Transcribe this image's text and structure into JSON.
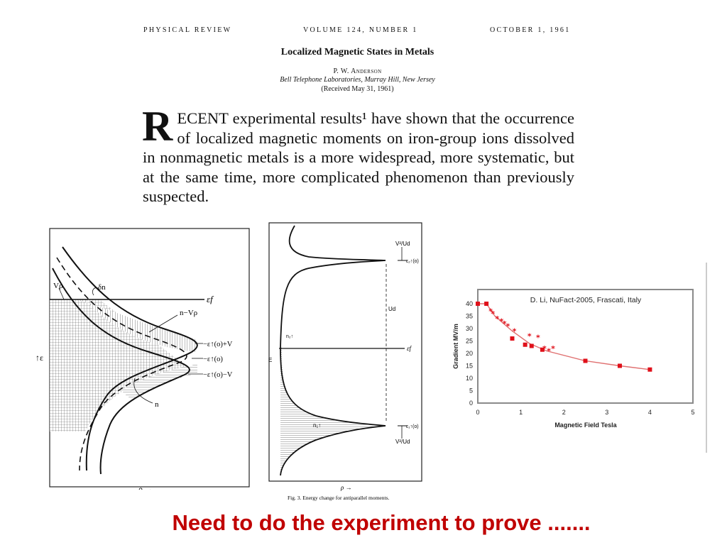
{
  "header": {
    "journal": "PHYSICAL REVIEW",
    "volume": "VOLUME 124, NUMBER 1",
    "date": "OCTOBER 1, 1961"
  },
  "paper": {
    "title": "Localized Magnetic States in Metals",
    "author": "P. W. Anderson",
    "affiliation": "Bell Telephone Laboratories, Murray Hill, New Jersey",
    "received": "(Received May 31, 1961)",
    "dropcap": "R",
    "abstract_rest": "ECENT experimental results¹ have shown that the occurrence of localized magnetic moments on iron-group ions dissolved in nonmagnetic metals is a more widespread, more systematic, but at the same time, more complicated phenomenon than previously suspected."
  },
  "figure_left": {
    "labels": {
      "ef": "εf",
      "vrho": "Vρ",
      "dn": "δn",
      "n_minus_vrho": "n−Vρ",
      "e_plus_v": "−ε↑(o)+V",
      "e0": "−ε↑(o)",
      "e_minus_v": "−ε↑(o)−V",
      "n": "n",
      "e_axis": "↑ε",
      "rho_axis": "ρ →"
    }
  },
  "figure_mid": {
    "labels": {
      "v2ud_top": "V²/Ud",
      "e2": "ε₂↑(o)",
      "ud": "Ud",
      "ef": "εf",
      "n2": "n₂↑",
      "e_axis": "E",
      "n1": "n₁↑",
      "e1": "ε₁↑(o)",
      "v2ud_bottom": "V²/Ud",
      "rho_axis": "ρ →",
      "caption": "Fig. 3. Energy change for antiparallel moments."
    }
  },
  "chart_data": {
    "type": "scatter",
    "title": "D. Li, NuFact-2005, Frascati, Italy",
    "xlabel": "Magnetic Field Tesla",
    "ylabel": "Gradient MV/m",
    "xlim": [
      0,
      5
    ],
    "ylim": [
      0,
      40
    ],
    "x_ticks": [
      "0",
      "1",
      "2",
      "3",
      "4",
      "5"
    ],
    "y_ticks": [
      "0",
      "5",
      "10",
      "15",
      "20",
      "25",
      "30",
      "35",
      "40"
    ],
    "series": [
      {
        "marker": "square",
        "color": "#e0101a",
        "points": [
          [
            0,
            40
          ],
          [
            0.2,
            40
          ],
          [
            0.8,
            26
          ],
          [
            1.1,
            23.5
          ],
          [
            1.25,
            23
          ],
          [
            1.5,
            21.5
          ],
          [
            2.5,
            17
          ],
          [
            3.3,
            15
          ],
          [
            4,
            13.5
          ]
        ]
      },
      {
        "marker": "star",
        "color": "#e0101a",
        "points": [
          [
            0.3,
            37
          ],
          [
            0.35,
            36
          ],
          [
            0.45,
            34
          ],
          [
            0.55,
            33
          ],
          [
            0.62,
            32
          ],
          [
            0.7,
            31
          ],
          [
            0.85,
            29
          ],
          [
            1.2,
            27
          ],
          [
            1.4,
            26.5
          ],
          [
            1.55,
            22
          ],
          [
            1.65,
            21
          ],
          [
            1.75,
            22
          ]
        ]
      },
      {
        "marker": "line",
        "color": "#e07070",
        "points": [
          [
            0,
            40
          ],
          [
            0.2,
            40
          ],
          [
            0.4,
            35
          ],
          [
            0.8,
            29
          ],
          [
            1.2,
            24
          ],
          [
            1.6,
            21
          ],
          [
            2.5,
            17
          ],
          [
            3.3,
            15
          ],
          [
            4,
            13.5
          ]
        ]
      }
    ]
  },
  "footer": {
    "text": "Need to do the experiment to prove ......."
  },
  "colors": {
    "footer_text": "#c00000",
    "chart_marker": "#e0101a",
    "chart_border": "#7f7f7f"
  }
}
